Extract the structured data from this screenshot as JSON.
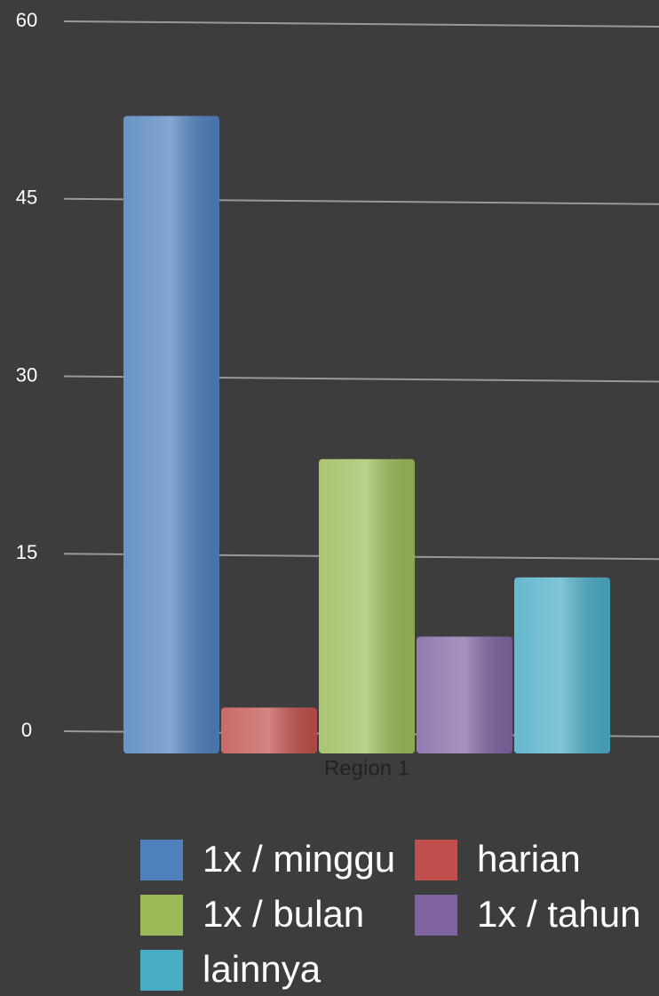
{
  "chart_data": {
    "type": "bar",
    "categories": [
      "Region 1"
    ],
    "series": [
      {
        "name": "1x / minggu",
        "color": "#4f81bd",
        "values": [
          52
        ]
      },
      {
        "name": "harian",
        "color": "#c0504d",
        "values": [
          2
        ]
      },
      {
        "name": "1x / bulan",
        "color": "#9bbb59",
        "values": [
          23
        ]
      },
      {
        "name": "1x / tahun",
        "color": "#8064a2",
        "values": [
          8
        ]
      },
      {
        "name": "lainnya",
        "color": "#4bacc6",
        "values": [
          13
        ]
      }
    ],
    "ylim": [
      0,
      60
    ],
    "yticks": [
      0,
      15,
      30,
      45,
      60
    ],
    "grid": true
  }
}
